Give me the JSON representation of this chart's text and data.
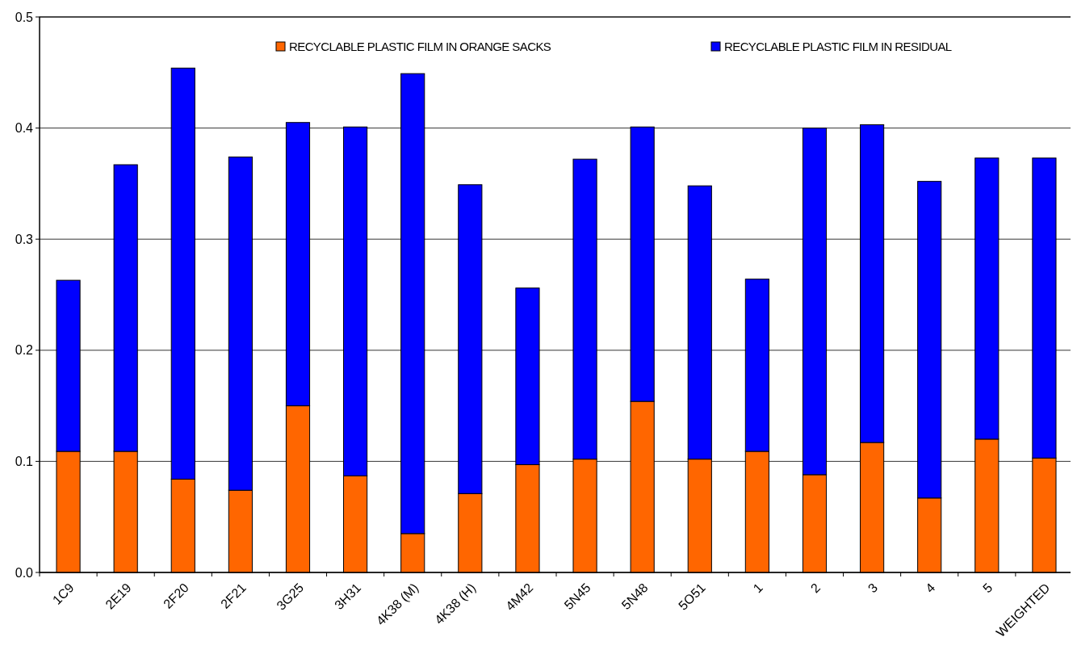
{
  "chart_data": {
    "type": "bar",
    "stacked": true,
    "categories": [
      "1C9",
      "2E19",
      "2F20",
      "2F21",
      "3G25",
      "3H31",
      "4K38 (M)",
      "4K38 (H)",
      "4M42",
      "5N45",
      "5N48",
      "5O51",
      "1",
      "2",
      "3",
      "4",
      "5",
      "WEIGHTED"
    ],
    "series": [
      {
        "name": "RECYCLABLE PLASTIC FILM IN ORANGE SACKS",
        "color": "#ff6600",
        "values": [
          0.109,
          0.109,
          0.084,
          0.074,
          0.15,
          0.087,
          0.035,
          0.071,
          0.097,
          0.102,
          0.154,
          0.102,
          0.109,
          0.088,
          0.117,
          0.067,
          0.12,
          0.103
        ]
      },
      {
        "name": "RECYCLABLE PLASTIC FILM IN RESIDUAL",
        "color": "#0000ff",
        "values": [
          0.154,
          0.258,
          0.37,
          0.3,
          0.255,
          0.314,
          0.414,
          0.278,
          0.159,
          0.27,
          0.247,
          0.246,
          0.155,
          0.312,
          0.286,
          0.285,
          0.253,
          0.27
        ]
      }
    ],
    "ylim": [
      0,
      0.5
    ],
    "yticks": [
      {
        "value": 0,
        "label": "0.0"
      },
      0.1,
      0.2,
      0.3,
      0.4,
      0.5
    ],
    "grid": "y",
    "legend": "top"
  }
}
